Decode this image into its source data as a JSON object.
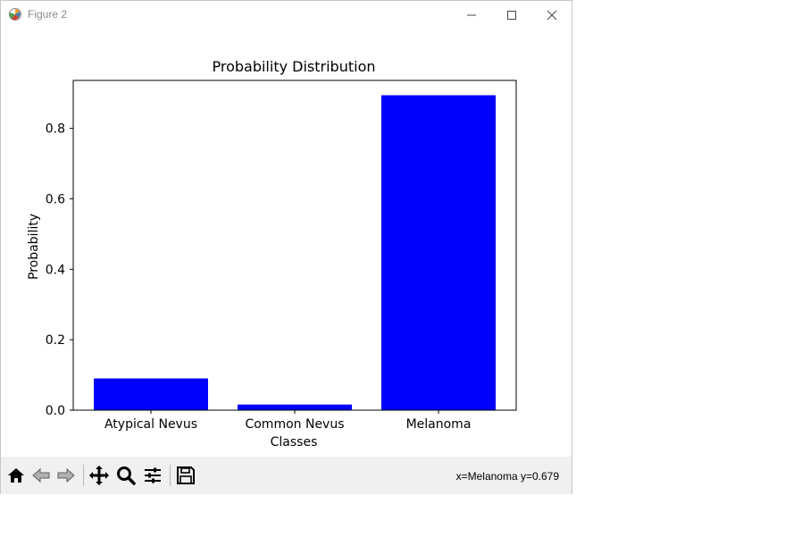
{
  "window": {
    "title": "Figure 2"
  },
  "toolbar": {
    "buttons": [
      {
        "name": "home-icon"
      },
      {
        "name": "back-arrow-icon"
      },
      {
        "name": "forward-arrow-icon"
      },
      {
        "name": "pan-icon"
      },
      {
        "name": "zoom-icon"
      },
      {
        "name": "configure-subplots-icon"
      },
      {
        "name": "save-icon"
      }
    ],
    "coords": "x=Melanoma y=0.679"
  },
  "chart_data": {
    "type": "bar",
    "title": "Probability Distribution",
    "xlabel": "Classes",
    "ylabel": "Probability",
    "categories": [
      "Atypical Nevus",
      "Common Nevus",
      "Melanoma"
    ],
    "values": [
      0.09,
      0.016,
      0.894
    ],
    "ylim": [
      0,
      0.936
    ],
    "yticks": [
      0.0,
      0.2,
      0.4,
      0.6,
      0.8
    ],
    "ytick_labels": [
      "0.0",
      "0.2",
      "0.4",
      "0.6",
      "0.8"
    ],
    "bar_color": "#0000ff",
    "grid": false
  }
}
